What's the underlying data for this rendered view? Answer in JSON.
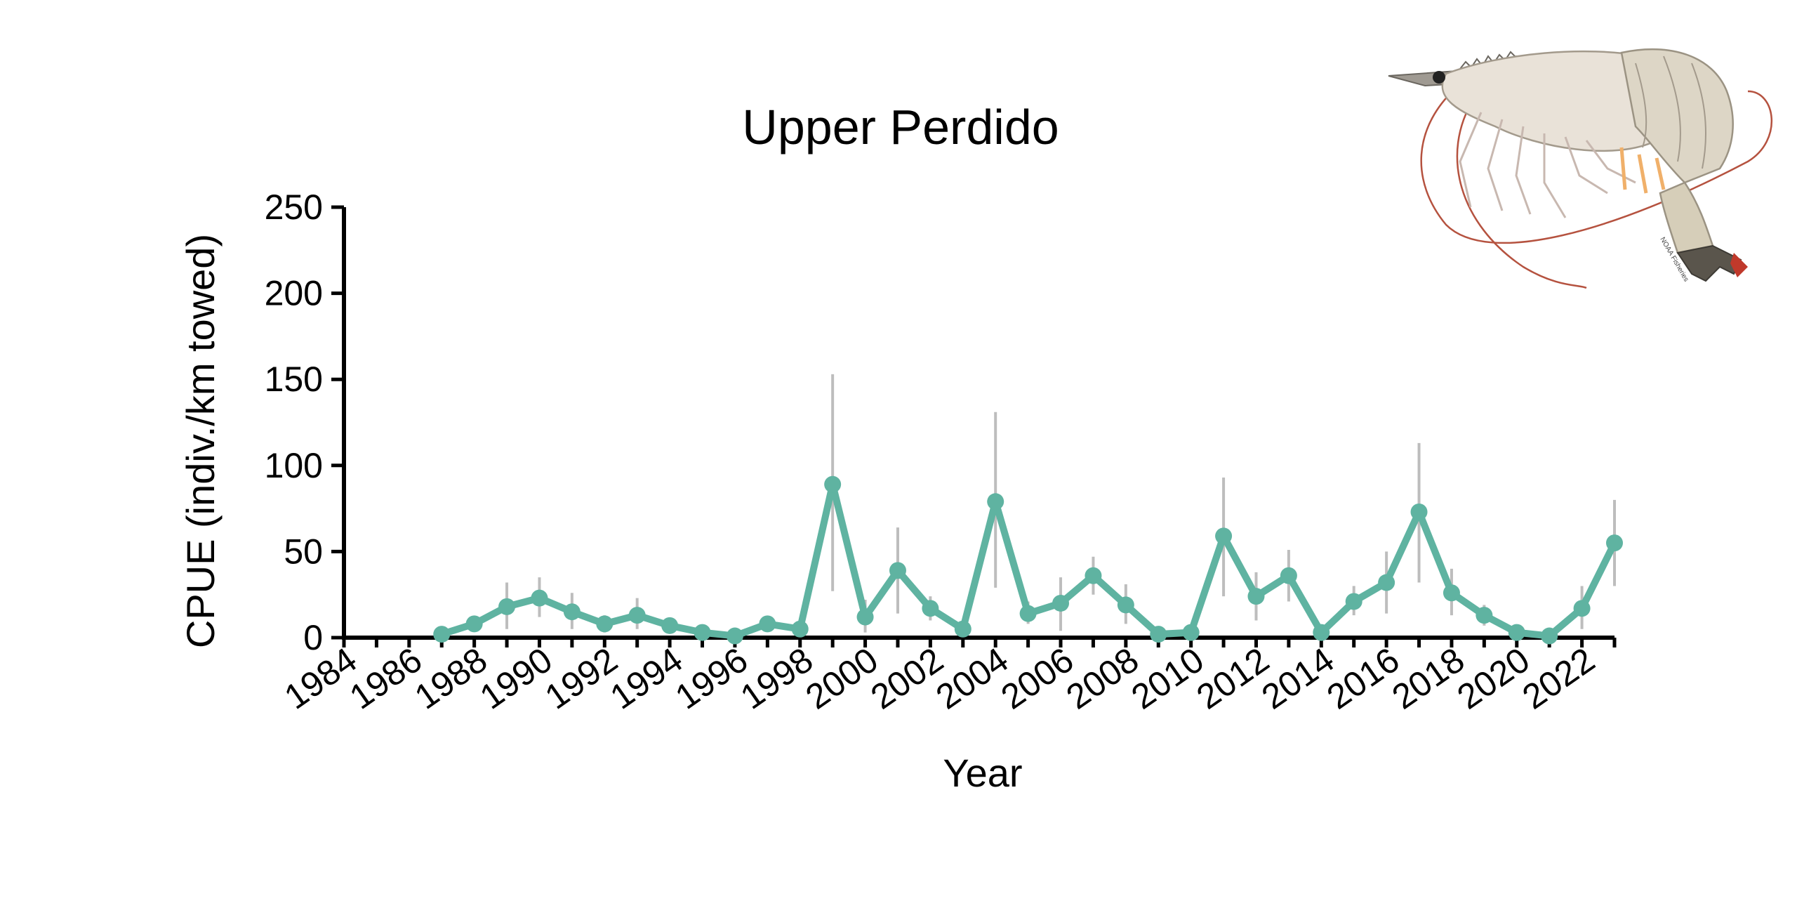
{
  "chart_data": {
    "type": "line",
    "title": "Upper Perdido",
    "xlabel": "Year",
    "ylabel": "CPUE (indiv./km towed)",
    "xlim": [
      1984,
      2023
    ],
    "ylim": [
      0,
      250
    ],
    "x_ticks": [
      1984,
      1986,
      1988,
      1990,
      1992,
      1994,
      1996,
      1998,
      2000,
      2002,
      2004,
      2006,
      2008,
      2010,
      2012,
      2014,
      2016,
      2018,
      2020,
      2022
    ],
    "y_ticks": [
      0,
      50,
      100,
      150,
      200,
      250
    ],
    "grid": false,
    "legend": "none",
    "color": "#5fb3a1",
    "error_bar_color": "#bdbdbd",
    "series": [
      {
        "x": [
          1987,
          1988,
          1989,
          1990,
          1991,
          1992,
          1993,
          1994,
          1995,
          1996,
          1997,
          1998,
          1999,
          2000,
          2001,
          2002,
          2003,
          2004,
          2005,
          2006,
          2007,
          2008,
          2009,
          2010,
          2011,
          2012,
          2013,
          2014,
          2015,
          2016,
          2017,
          2018,
          2019,
          2020,
          2021,
          2022,
          2023
        ],
        "values": [
          2,
          8,
          18,
          23,
          15,
          8,
          13,
          7,
          3,
          1,
          8,
          5,
          89,
          12,
          39,
          17,
          5,
          79,
          14,
          20,
          36,
          19,
          2,
          3,
          59,
          24,
          36,
          3,
          21,
          32,
          73,
          26,
          13,
          3,
          1,
          17,
          55
        ],
        "error_low": [
          0,
          4,
          5,
          12,
          5,
          3,
          5,
          3,
          1,
          0,
          4,
          1,
          27,
          3,
          14,
          10,
          1,
          29,
          8,
          4,
          25,
          8,
          1,
          1,
          24,
          10,
          21,
          1,
          13,
          14,
          32,
          13,
          7,
          2,
          0,
          5,
          30
        ],
        "error_high": [
          4,
          12,
          32,
          35,
          26,
          13,
          23,
          11,
          6,
          3,
          12,
          9,
          153,
          22,
          64,
          24,
          10,
          131,
          21,
          35,
          47,
          31,
          4,
          6,
          93,
          38,
          51,
          5,
          30,
          50,
          113,
          40,
          19,
          5,
          2,
          30,
          80
        ]
      }
    ]
  }
}
